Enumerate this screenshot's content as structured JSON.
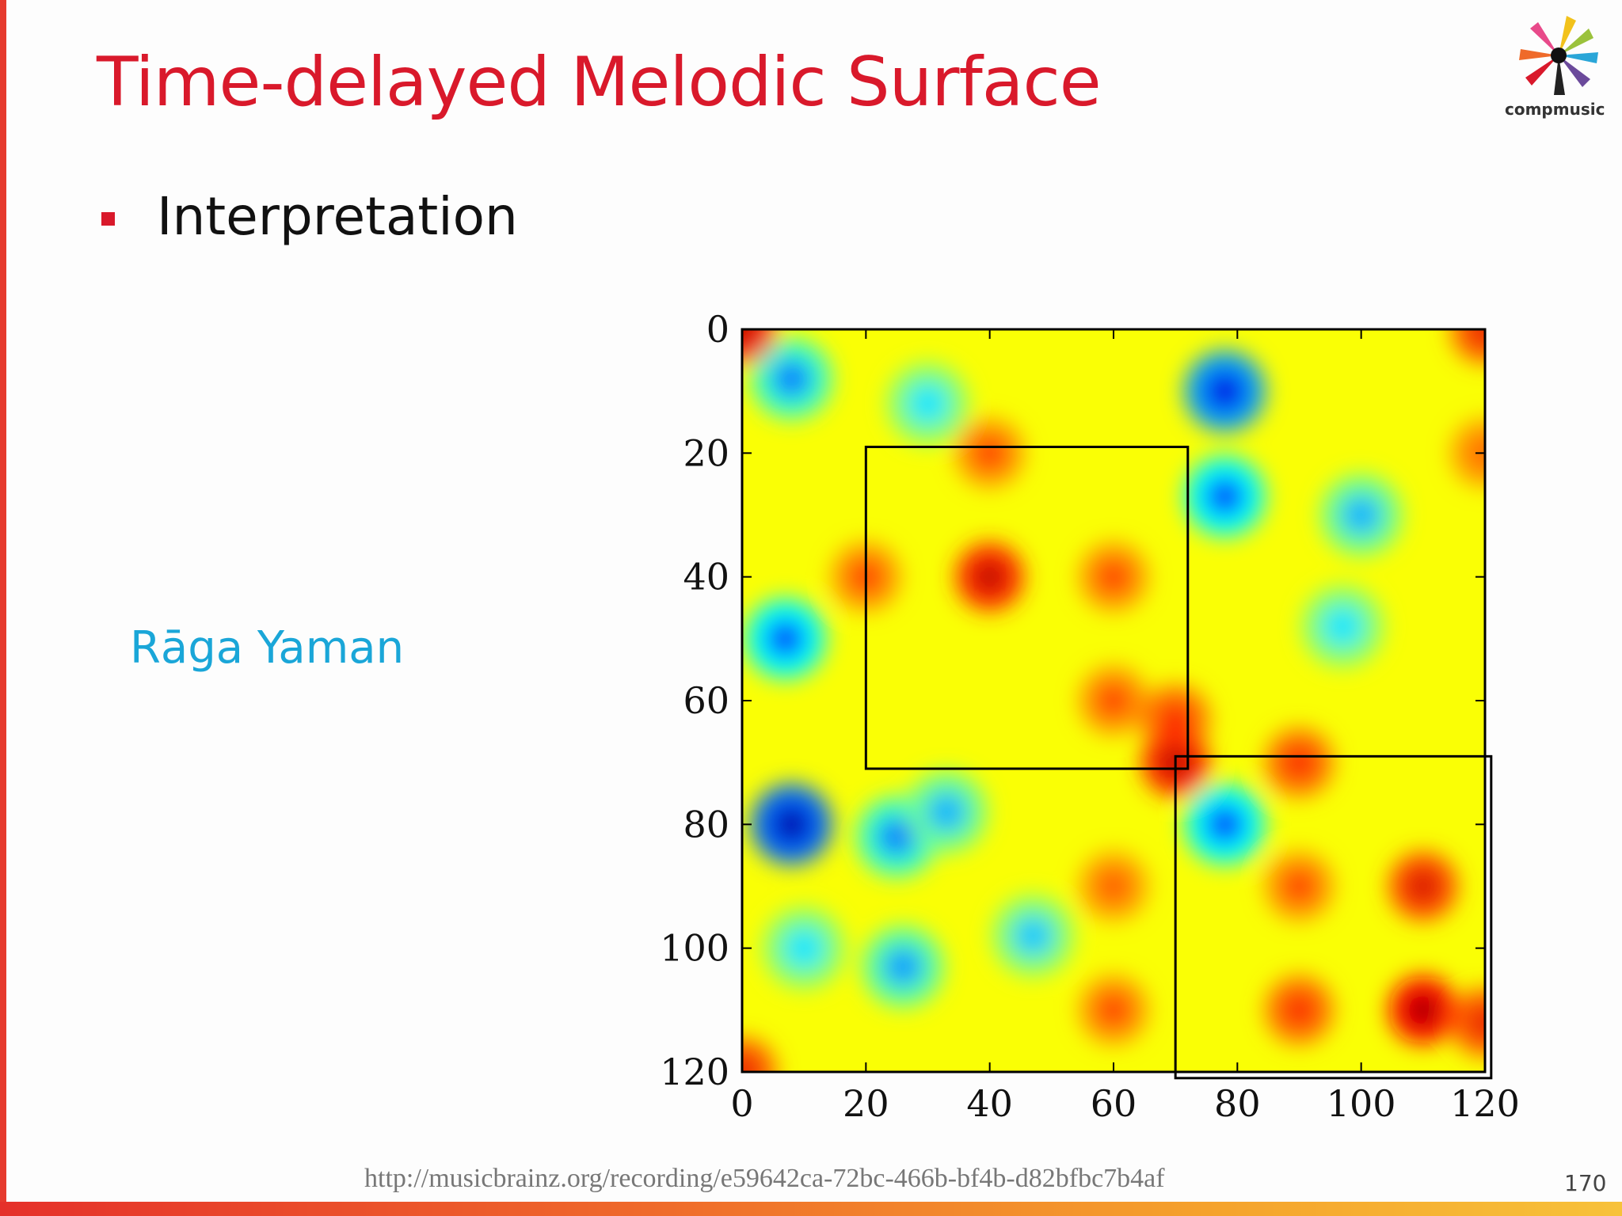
{
  "slide": {
    "title": "Time-delayed Melodic Surface",
    "bullet": "Interpretation",
    "raga_label": "Rāga Yaman",
    "url": "http://musicbrainz.org/recording/e59642ca-72bc-466b-bf4b-d82bfbc7b4af",
    "page_number": "170",
    "logo_text": "compmusic"
  },
  "colors": {
    "title": "#d9192b",
    "raga": "#1aa6d8",
    "accent_bar": "#e63a2e"
  },
  "chart_data": {
    "type": "heatmap",
    "title": "",
    "xlabel": "",
    "ylabel": "",
    "xlim": [
      0,
      120
    ],
    "ylim": [
      0,
      120
    ],
    "y_inverted": true,
    "xticks": [
      0,
      20,
      40,
      60,
      80,
      100,
      120
    ],
    "yticks": [
      0,
      20,
      40,
      60,
      80,
      100,
      120
    ],
    "colormap": "jet",
    "background_level": 0.62,
    "hot_spots": [
      {
        "x": 0,
        "y": 0,
        "level": 0.95
      },
      {
        "x": 120,
        "y": 0,
        "level": 0.9
      },
      {
        "x": 0,
        "y": 120,
        "level": 0.9
      },
      {
        "x": 40,
        "y": 20,
        "level": 0.85
      },
      {
        "x": 120,
        "y": 20,
        "level": 0.78
      },
      {
        "x": 20,
        "y": 40,
        "level": 0.85
      },
      {
        "x": 40,
        "y": 40,
        "level": 0.95
      },
      {
        "x": 60,
        "y": 40,
        "level": 0.85
      },
      {
        "x": 60,
        "y": 60,
        "level": 0.85
      },
      {
        "x": 70,
        "y": 63,
        "level": 0.88
      },
      {
        "x": 70,
        "y": 70,
        "level": 0.95
      },
      {
        "x": 90,
        "y": 70,
        "level": 0.88
      },
      {
        "x": 60,
        "y": 90,
        "level": 0.8
      },
      {
        "x": 90,
        "y": 90,
        "level": 0.85
      },
      {
        "x": 110,
        "y": 90,
        "level": 0.92
      },
      {
        "x": 60,
        "y": 110,
        "level": 0.85
      },
      {
        "x": 90,
        "y": 110,
        "level": 0.88
      },
      {
        "x": 110,
        "y": 110,
        "level": 0.98
      },
      {
        "x": 120,
        "y": 112,
        "level": 0.9
      }
    ],
    "cold_spots": [
      {
        "x": 8,
        "y": 8,
        "level": 0.25
      },
      {
        "x": 78,
        "y": 10,
        "level": 0.1
      },
      {
        "x": 30,
        "y": 12,
        "level": 0.35
      },
      {
        "x": 78,
        "y": 27,
        "level": 0.2
      },
      {
        "x": 100,
        "y": 30,
        "level": 0.3
      },
      {
        "x": 7,
        "y": 50,
        "level": 0.2
      },
      {
        "x": 97,
        "y": 48,
        "level": 0.35
      },
      {
        "x": 8,
        "y": 80,
        "level": 0.05
      },
      {
        "x": 25,
        "y": 82,
        "level": 0.25
      },
      {
        "x": 33,
        "y": 78,
        "level": 0.3
      },
      {
        "x": 78,
        "y": 80,
        "level": 0.2
      },
      {
        "x": 47,
        "y": 98,
        "level": 0.32
      },
      {
        "x": 26,
        "y": 103,
        "level": 0.28
      },
      {
        "x": 10,
        "y": 100,
        "level": 0.35
      }
    ],
    "boxes": [
      {
        "x0": 20,
        "y0": 19,
        "x1": 72,
        "y1": 71
      },
      {
        "x0": 70,
        "y0": 69,
        "x1": 121,
        "y1": 121
      }
    ]
  }
}
